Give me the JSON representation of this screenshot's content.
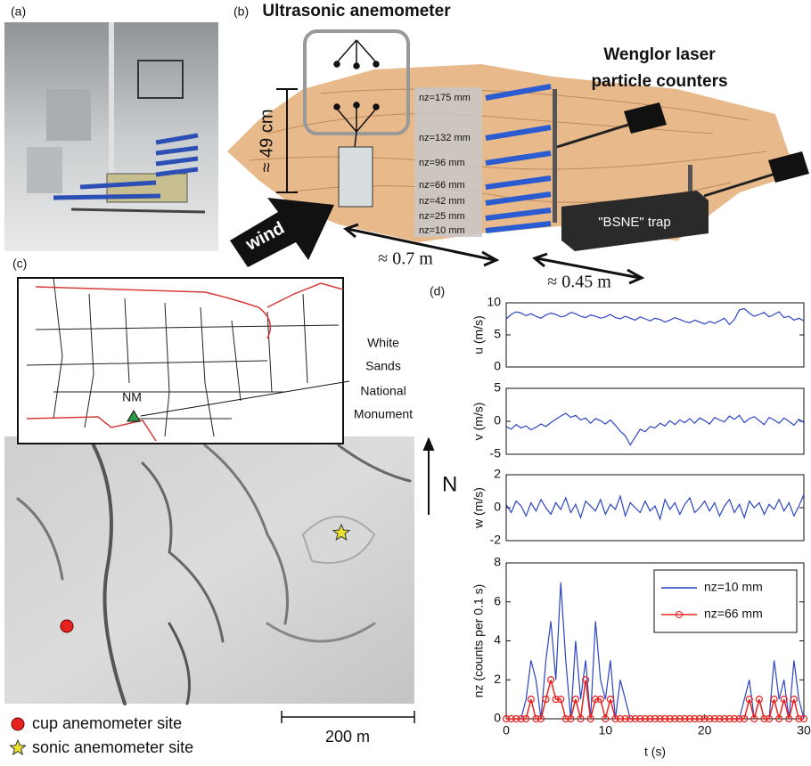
{
  "panels": {
    "a": {
      "label": "(a)"
    },
    "b": {
      "label": "(b)",
      "title": "Ultrasonic anemometer",
      "counters": [
        "Wenglor laser",
        "particle counters"
      ],
      "height": "≈ 49 cm",
      "heights": [
        "nz=175 mm",
        "nz=132 mm",
        "nz=96 mm",
        "nz=66 mm",
        "nz=42 mm",
        "nz=25 mm",
        "nz=10 mm"
      ],
      "wind": "wind",
      "dist1": "≈ 0.7 m",
      "dist2": "≈ 0.45 m",
      "trap": "\"BSNE\" trap"
    },
    "c": {
      "label": "(c)",
      "state": "NM",
      "site": [
        "White",
        "Sands",
        "National",
        "Monument"
      ],
      "north": "N",
      "legend": [
        "cup anemometer site",
        "sonic anemometer site"
      ],
      "scale": "200 m"
    },
    "d": {
      "label": "(d)"
    }
  },
  "chart_data": [
    {
      "type": "line",
      "ylabel": "u (m/s)",
      "xlim": [
        0,
        30
      ],
      "ylim": [
        0,
        10
      ],
      "yticks": [
        0,
        5,
        10
      ],
      "x": [
        0,
        0.5,
        1,
        1.5,
        2,
        2.5,
        3,
        3.5,
        4,
        4.5,
        5,
        5.5,
        6,
        6.5,
        7,
        7.5,
        8,
        8.5,
        9,
        9.5,
        10,
        10.5,
        11,
        11.5,
        12,
        12.5,
        13,
        13.5,
        14,
        14.5,
        15,
        15.5,
        16,
        16.5,
        17,
        17.5,
        18,
        18.5,
        19,
        19.5,
        20,
        20.5,
        21,
        21.5,
        22,
        22.5,
        23,
        23.5,
        24,
        24.5,
        25,
        25.5,
        26,
        26.5,
        27,
        27.5,
        28,
        28.5,
        29,
        29.5,
        30
      ],
      "series": [
        {
          "color": "#2b45c4",
          "values": [
            7.5,
            8.2,
            8.6,
            8.4,
            8.0,
            8.3,
            7.9,
            7.6,
            8.1,
            8.4,
            8.2,
            7.8,
            8.0,
            8.5,
            8.3,
            7.9,
            7.7,
            8.1,
            7.9,
            7.6,
            7.8,
            8.2,
            7.7,
            7.5,
            7.9,
            7.6,
            7.3,
            7.8,
            7.5,
            7.2,
            7.6,
            7.4,
            7.0,
            7.3,
            7.7,
            7.4,
            7.1,
            6.9,
            7.3,
            7.0,
            6.7,
            7.1,
            6.8,
            7.2,
            7.6,
            6.6,
            7.4,
            8.9,
            9.1,
            8.4,
            7.9,
            8.2,
            8.5,
            7.8,
            8.2,
            8.6,
            7.7,
            7.9,
            7.3,
            7.6,
            7.2
          ]
        }
      ]
    },
    {
      "type": "line",
      "ylabel": "v (m/s)",
      "xlim": [
        0,
        30
      ],
      "ylim": [
        -5,
        5
      ],
      "yticks": [
        -5,
        0,
        5
      ],
      "x": [
        0,
        0.5,
        1,
        1.5,
        2,
        2.5,
        3,
        3.5,
        4,
        4.5,
        5,
        5.5,
        6,
        6.5,
        7,
        7.5,
        8,
        8.5,
        9,
        9.5,
        10,
        10.5,
        11,
        11.5,
        12,
        12.5,
        13,
        13.5,
        14,
        14.5,
        15,
        15.5,
        16,
        16.5,
        17,
        17.5,
        18,
        18.5,
        19,
        19.5,
        20,
        20.5,
        21,
        21.5,
        22,
        22.5,
        23,
        23.5,
        24,
        24.5,
        25,
        25.5,
        26,
        26.5,
        27,
        27.5,
        28,
        28.5,
        29,
        29.5,
        30
      ],
      "series": [
        {
          "color": "#2b45c4",
          "values": [
            -0.8,
            -1.2,
            -0.5,
            -1.0,
            -0.7,
            -1.3,
            -0.9,
            -0.4,
            -0.8,
            -0.2,
            0.3,
            0.8,
            1.2,
            0.6,
            0.9,
            0.2,
            0.5,
            -0.3,
            0.4,
            0.1,
            -0.4,
            0.2,
            -0.6,
            -1.5,
            -2.2,
            -3.6,
            -2.4,
            -1.2,
            -1.6,
            -0.8,
            -1.0,
            -0.3,
            -0.7,
            0.1,
            -0.5,
            0.2,
            -0.2,
            0.4,
            -0.3,
            0.5,
            0.1,
            -0.4,
            0.6,
            0.2,
            -0.1,
            0.8,
            0.3,
            0.9,
            -0.2,
            0.4,
            0.7,
            0.1,
            -0.5,
            0.6,
            0.2,
            -0.3,
            0.5,
            0.0,
            -0.6,
            0.3,
            -0.2
          ]
        }
      ]
    },
    {
      "type": "line",
      "ylabel": "w (m/s)",
      "xlim": [
        0,
        30
      ],
      "ylim": [
        -2,
        2
      ],
      "yticks": [
        -2,
        0,
        2
      ],
      "x": [
        0,
        0.5,
        1,
        1.5,
        2,
        2.5,
        3,
        3.5,
        4,
        4.5,
        5,
        5.5,
        6,
        6.5,
        7,
        7.5,
        8,
        8.5,
        9,
        9.5,
        10,
        10.5,
        11,
        11.5,
        12,
        12.5,
        13,
        13.5,
        14,
        14.5,
        15,
        15.5,
        16,
        16.5,
        17,
        17.5,
        18,
        18.5,
        19,
        19.5,
        20,
        20.5,
        21,
        21.5,
        22,
        22.5,
        23,
        23.5,
        24,
        24.5,
        25,
        25.5,
        26,
        26.5,
        27,
        27.5,
        28,
        28.5,
        29,
        29.5,
        30
      ],
      "series": [
        {
          "color": "#2b45c4",
          "values": [
            0.2,
            -0.3,
            0.4,
            0.1,
            -0.5,
            0.3,
            -0.2,
            0.5,
            0.0,
            -0.4,
            0.3,
            -0.1,
            0.6,
            -0.3,
            0.2,
            -0.6,
            0.4,
            0.1,
            -0.2,
            0.5,
            -0.4,
            0.2,
            -0.1,
            0.7,
            -0.5,
            0.3,
            0.0,
            -0.3,
            0.4,
            -0.2,
            0.1,
            -0.7,
            0.5,
            -0.1,
            0.3,
            -0.4,
            0.2,
            0.6,
            -0.3,
            0.0,
            0.4,
            -0.2,
            0.3,
            -0.5,
            0.1,
            0.5,
            -0.3,
            0.2,
            -0.6,
            0.4,
            0.0,
            0.3,
            -0.4,
            0.2,
            -0.1,
            0.5,
            -0.2,
            0.3,
            -0.5,
            0.1,
            0.8
          ]
        }
      ]
    },
    {
      "type": "line",
      "ylabel": "nz (counts per 0.1 s)",
      "xlabel": "t (s)",
      "xlim": [
        0,
        30
      ],
      "xticks": [
        0,
        10,
        20,
        30
      ],
      "ylim": [
        0,
        8
      ],
      "yticks": [
        0,
        2,
        4,
        6,
        8
      ],
      "legend": "upper right",
      "x": [
        0,
        0.5,
        1,
        1.5,
        2,
        2.5,
        3,
        3.5,
        4,
        4.5,
        5,
        5.5,
        6,
        6.5,
        7,
        7.5,
        8,
        8.5,
        9,
        9.5,
        10,
        10.5,
        11,
        11.5,
        12,
        12.5,
        13,
        13.5,
        14,
        14.5,
        15,
        15.5,
        16,
        16.5,
        17,
        17.5,
        18,
        18.5,
        19,
        19.5,
        20,
        20.5,
        21,
        21.5,
        22,
        22.5,
        23,
        23.5,
        24,
        24.5,
        25,
        25.5,
        26,
        26.5,
        27,
        27.5,
        28,
        28.5,
        29,
        29.5,
        30
      ],
      "series": [
        {
          "name": "nz=10 mm",
          "color": "#2b45c4",
          "values": [
            0,
            0,
            0,
            0,
            1,
            3,
            2,
            0,
            3,
            5,
            2,
            7,
            3,
            0,
            4,
            1,
            3,
            0,
            5,
            2,
            1,
            3,
            0,
            2,
            1,
            0,
            0,
            0,
            0,
            0,
            0,
            0,
            0,
            0,
            0,
            0,
            0,
            0,
            0,
            0,
            0,
            0,
            0,
            0,
            0,
            0,
            0,
            0,
            1,
            2,
            0,
            1,
            0,
            0,
            3,
            1,
            2,
            0,
            3,
            1,
            0
          ]
        },
        {
          "name": "nz=66 mm",
          "color": "#e8231f",
          "marker": "o",
          "values": [
            0,
            0,
            0,
            0,
            0,
            1,
            0,
            0,
            1,
            2,
            1,
            1,
            0,
            0,
            1,
            0,
            2,
            0,
            1,
            1,
            0,
            1,
            0,
            0,
            0,
            0,
            0,
            0,
            0,
            0,
            0,
            0,
            0,
            0,
            0,
            0,
            0,
            0,
            0,
            0,
            0,
            0,
            0,
            0,
            0,
            0,
            0,
            0,
            0,
            1,
            0,
            1,
            0,
            0,
            1,
            0,
            1,
            0,
            1,
            0,
            0
          ]
        }
      ]
    }
  ]
}
